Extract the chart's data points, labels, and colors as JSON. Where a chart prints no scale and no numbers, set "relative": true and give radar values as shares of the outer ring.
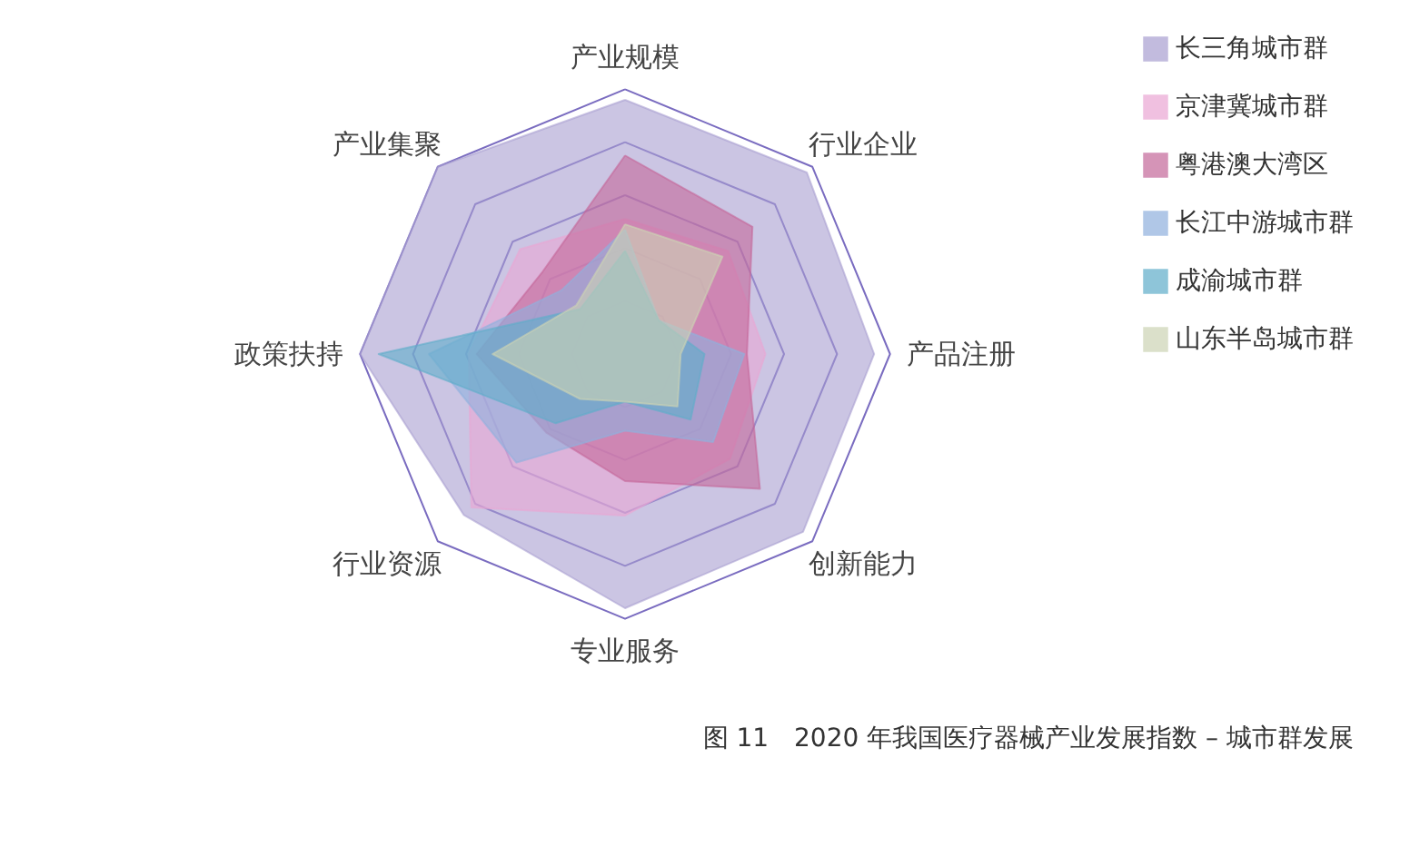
{
  "chart_data": {
    "type": "radar",
    "relative": true,
    "title": "图 11　2020 年我国医疗器械产业发展指数 – 城市群发展",
    "categories": [
      "产业规模",
      "行业企业",
      "产品注册",
      "创新能力",
      "专业服务",
      "行业资源",
      "政策扶持",
      "产业集聚"
    ],
    "legend": "right",
    "grid": true,
    "series": [
      {
        "name": "长三角城市群",
        "color": "#a99fd1",
        "values": [
          0.96,
          0.97,
          0.94,
          0.95,
          0.96,
          0.86,
          1.0,
          1.0
        ]
      },
      {
        "name": "京津冀城市群",
        "color": "#eaa6d4",
        "values": [
          0.51,
          0.55,
          0.53,
          0.56,
          0.61,
          0.82,
          0.59,
          0.56
        ]
      },
      {
        "name": "粤港澳大湾区",
        "color": "#c4679a",
        "values": [
          0.75,
          0.68,
          0.46,
          0.72,
          0.48,
          0.42,
          0.56,
          0.44
        ]
      },
      {
        "name": "长江中游城市群",
        "color": "#8fb0de",
        "values": [
          0.47,
          0.18,
          0.45,
          0.47,
          0.29,
          0.58,
          0.74,
          0.34
        ]
      },
      {
        "name": "成渝城市群",
        "color": "#5fadc9",
        "values": [
          0.39,
          0.18,
          0.3,
          0.35,
          0.18,
          0.37,
          0.93,
          0.24
        ]
      },
      {
        "name": "山东半岛城市群",
        "color": "#cdd3b4",
        "values": [
          0.49,
          0.52,
          0.21,
          0.28,
          0.18,
          0.24,
          0.5,
          0.26
        ]
      }
    ]
  }
}
